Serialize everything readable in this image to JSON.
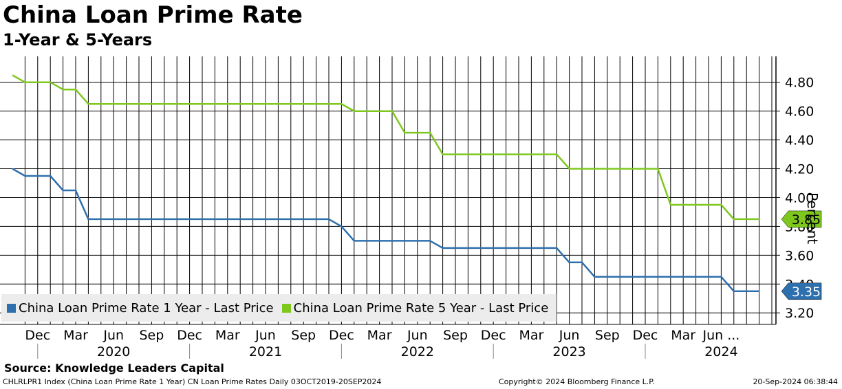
{
  "title": "China Loan Prime Rate",
  "subtitle": "1-Year & 5-Years",
  "source": "Source: Knowledge Leaders Capital",
  "footer": {
    "left": "CHLRLPR1 Index (China Loan Prime Rate 1 Year) CN Loan Prime Rates  Daily 03OCT2019-20SEP2024",
    "middle": "Copyright© 2024 Bloomberg Finance L.P.",
    "right": "20-Sep-2024 06:38:44"
  },
  "chart_data": {
    "type": "line",
    "ylabel": "Percent",
    "ylim": [
      3.12,
      4.98
    ],
    "y_ticks": [
      "3.20",
      "3.40",
      "3.60",
      "3.80",
      "4.00",
      "4.20",
      "4.40",
      "4.60",
      "4.80"
    ],
    "x_month_labels": [
      "Dec",
      "Mar",
      "Jun",
      "Sep",
      "Dec",
      "Mar",
      "Jun",
      "Sep",
      "Dec",
      "Mar",
      "Jun",
      "Sep",
      "Dec",
      "Mar",
      "Jun",
      "Sep",
      "Dec",
      "Mar",
      "Jun ..."
    ],
    "x_year_labels": [
      "2020",
      "2021",
      "2022",
      "2023",
      "2024"
    ],
    "grid": true,
    "legend_position": "bottom-left",
    "series": [
      {
        "name": "China Loan Prime Rate 1 Year - Last Price",
        "color": "#2e6fad",
        "last_value": "3.35",
        "points": [
          [
            "2019-10",
            4.2
          ],
          [
            "2019-11",
            4.15
          ],
          [
            "2020-01",
            4.15
          ],
          [
            "2020-02",
            4.05
          ],
          [
            "2020-03",
            4.05
          ],
          [
            "2020-04",
            3.85
          ],
          [
            "2021-11",
            3.85
          ],
          [
            "2021-12",
            3.8
          ],
          [
            "2022-01",
            3.7
          ],
          [
            "2022-07",
            3.7
          ],
          [
            "2022-08",
            3.65
          ],
          [
            "2023-05",
            3.65
          ],
          [
            "2023-06",
            3.55
          ],
          [
            "2023-07",
            3.55
          ],
          [
            "2023-08",
            3.45
          ],
          [
            "2024-06",
            3.45
          ],
          [
            "2024-07",
            3.35
          ],
          [
            "2024-09",
            3.35
          ]
        ]
      },
      {
        "name": "China Loan Prime Rate 5 Year - Last Price",
        "color": "#7ec81e",
        "last_value": "3.85",
        "points": [
          [
            "2019-10",
            4.85
          ],
          [
            "2019-11",
            4.8
          ],
          [
            "2020-01",
            4.8
          ],
          [
            "2020-02",
            4.75
          ],
          [
            "2020-03",
            4.75
          ],
          [
            "2020-04",
            4.65
          ],
          [
            "2021-12",
            4.65
          ],
          [
            "2022-01",
            4.6
          ],
          [
            "2022-04",
            4.6
          ],
          [
            "2022-05",
            4.45
          ],
          [
            "2022-07",
            4.45
          ],
          [
            "2022-08",
            4.3
          ],
          [
            "2023-05",
            4.3
          ],
          [
            "2023-06",
            4.2
          ],
          [
            "2024-01",
            4.2
          ],
          [
            "2024-02",
            3.95
          ],
          [
            "2024-06",
            3.95
          ],
          [
            "2024-07",
            3.85
          ],
          [
            "2024-09",
            3.85
          ]
        ]
      }
    ]
  }
}
